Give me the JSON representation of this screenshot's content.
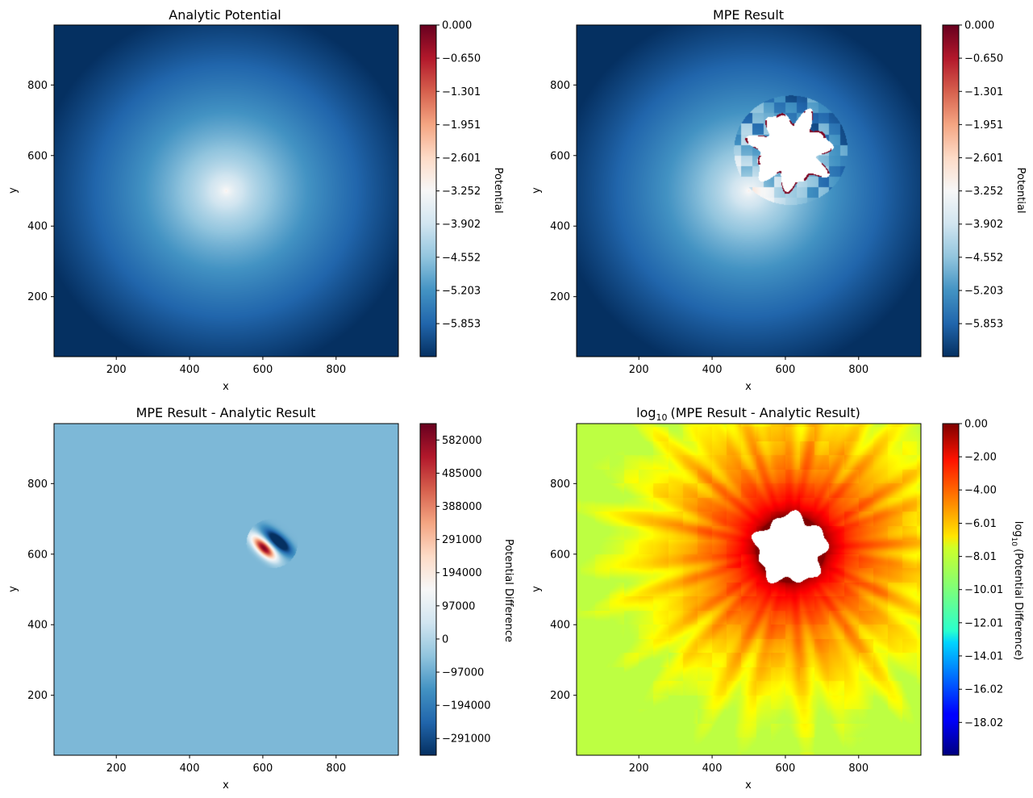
{
  "chart_data": [
    {
      "type": "heatmap",
      "title": "Analytic Potential",
      "xlabel": "x",
      "ylabel": "y",
      "xlim": [
        30,
        970
      ],
      "ylim": [
        30,
        970
      ],
      "xticks": [
        "200",
        "400",
        "600",
        "800"
      ],
      "yticks": [
        "200",
        "400",
        "600",
        "800"
      ],
      "colormap": "RdBu_r",
      "colorbar_label": "Potential",
      "colorbar_range": [
        -6.5,
        0.0
      ],
      "colorbar_ticks": [
        "0.000",
        "−0.650",
        "−1.301",
        "−1.951",
        "−2.601",
        "−3.252",
        "−3.902",
        "−4.552",
        "−5.203",
        "−5.853"
      ],
      "field": {
        "kind": "potential",
        "center": [
          500,
          500
        ],
        "min": -6.5,
        "max": -3.0
      }
    },
    {
      "type": "heatmap",
      "title": "MPE Result",
      "xlabel": "x",
      "ylabel": "y",
      "xlim": [
        30,
        970
      ],
      "ylim": [
        30,
        970
      ],
      "xticks": [
        "200",
        "400",
        "600",
        "800"
      ],
      "yticks": [
        "200",
        "400",
        "600",
        "800"
      ],
      "colormap": "RdBu_r",
      "colorbar_label": "Potential",
      "colorbar_range": [
        -6.5,
        0.0
      ],
      "colorbar_ticks": [
        "0.000",
        "−0.650",
        "−1.301",
        "−1.951",
        "−2.601",
        "−3.252",
        "−3.902",
        "−4.552",
        "−5.203",
        "−5.853"
      ],
      "field": {
        "kind": "potential_masked",
        "center": [
          500,
          500
        ],
        "min": -6.5,
        "max": -3.0,
        "nan_region_center": [
          615,
          615
        ],
        "nan_region_radius": 100
      }
    },
    {
      "type": "heatmap",
      "title": "MPE Result - Analytic Result",
      "xlabel": "x",
      "ylabel": "y",
      "xlim": [
        30,
        970
      ],
      "ylim": [
        30,
        970
      ],
      "xticks": [
        "200",
        "400",
        "600",
        "800"
      ],
      "yticks": [
        "200",
        "400",
        "600",
        "800"
      ],
      "colormap": "RdBu_r",
      "colorbar_label": "Potential Difference",
      "colorbar_range": [
        -340000,
        630000
      ],
      "colorbar_ticks": [
        "582000",
        "485000",
        "388000",
        "291000",
        "194000",
        "97000",
        "0",
        "−97000",
        "−194000",
        "−291000"
      ],
      "background_value": -75000,
      "features": [
        {
          "shape": "blob",
          "center": [
            605,
            615
          ],
          "value": 620000
        },
        {
          "shape": "blob",
          "center": [
            650,
            630
          ],
          "value": -320000
        },
        {
          "shape": "blob",
          "center": [
            625,
            650
          ],
          "value": -150000
        },
        {
          "shape": "blob",
          "center": [
            585,
            640
          ],
          "value": 100000
        }
      ]
    },
    {
      "type": "heatmap",
      "title": "log10 (MPE Result - Analytic Result)",
      "xlabel": "x",
      "ylabel": "y",
      "xlim": [
        30,
        970
      ],
      "ylim": [
        30,
        970
      ],
      "xticks": [
        "200",
        "400",
        "600",
        "800"
      ],
      "yticks": [
        "200",
        "400",
        "600",
        "800"
      ],
      "colormap": "jet",
      "colorbar_label": "log10 (Potential Difference)",
      "colorbar_range": [
        -20.0,
        0.0
      ],
      "colorbar_ticks": [
        "0.00",
        "−2.00",
        "−4.00",
        "−6.01",
        "−8.01",
        "−10.01",
        "−12.01",
        "−14.01",
        "−16.02",
        "−18.02"
      ],
      "field": {
        "kind": "log_difference",
        "center": [
          615,
          615
        ],
        "hole_radius": 95,
        "min": -8.8,
        "max": 0.0
      }
    }
  ],
  "panel_titles": {
    "p3_main": "MPE Result - Analytic Result",
    "p4_prefix": "log",
    "p4_sub": "10",
    "p4_rest": "(MPE Result - Analytic Result)"
  },
  "colorbar_label_parts": {
    "p4_prefix": "log",
    "p4_sub": "10",
    "p4_rest": "(Potential Difference)"
  },
  "colors": {
    "nan": "#ffffff",
    "axis": "#000000"
  }
}
